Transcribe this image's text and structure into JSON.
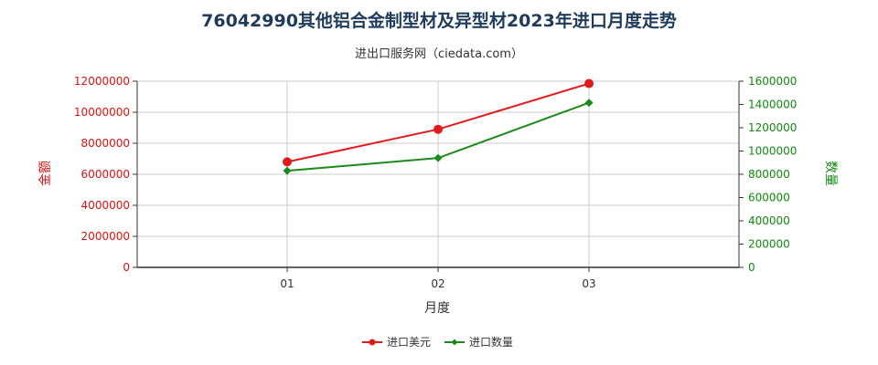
{
  "title": "76042990其他铝合金制型材及异型材2023年进口月度走势",
  "subtitle": "进出口服务网（ciedata.com）",
  "colors": {
    "amount": "#e31a1c",
    "quantity": "#1a8a1a",
    "grid": "#cccccc",
    "axis": "#333333"
  },
  "chart_data": {
    "type": "line",
    "x": [
      "01",
      "02",
      "03"
    ],
    "xlabel": "月度",
    "ylabel_left": "金额",
    "ylabel_right": "数量",
    "ylim_left": [
      0,
      12000000
    ],
    "ylim_right": [
      0,
      1600000
    ],
    "yticks_left": [
      "0",
      "2000000",
      "4000000",
      "6000000",
      "8000000",
      "10000000",
      "12000000"
    ],
    "yticks_right": [
      "0",
      "200000",
      "400000",
      "600000",
      "800000",
      "1000000",
      "1200000",
      "1400000",
      "1600000"
    ],
    "grid": true,
    "legend_position": "bottom",
    "series": [
      {
        "name": "进口美元",
        "axis": "left",
        "marker": "circle",
        "color": "#e31a1c",
        "values": [
          6800000,
          8900000,
          11850000
        ]
      },
      {
        "name": "进口数量",
        "axis": "right",
        "marker": "diamond",
        "color": "#1a8a1a",
        "values": [
          830000,
          940000,
          1415000
        ]
      }
    ]
  }
}
